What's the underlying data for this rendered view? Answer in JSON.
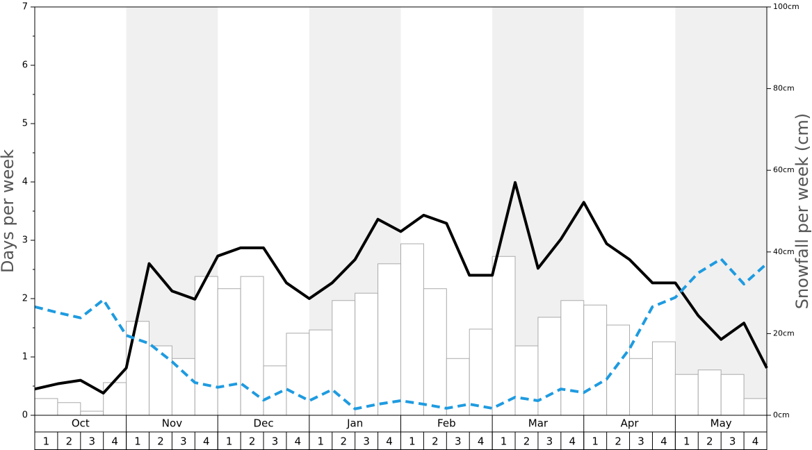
{
  "chart_data": {
    "type": "bar-line",
    "y_label": "Days per week",
    "y2_label": "Snowfall per week (cm)",
    "months": [
      "Oct",
      "Nov",
      "Dec",
      "Jan",
      "Feb",
      "Mar",
      "Apr",
      "May"
    ],
    "weeks": [
      1,
      2,
      3,
      4
    ],
    "ylim": [
      0,
      7
    ],
    "yticks": [
      0,
      1,
      2,
      3,
      4,
      5,
      6,
      7
    ],
    "y2lim": [
      0,
      100
    ],
    "y2ticks": [
      {
        "value": 0,
        "label": "0cm"
      },
      {
        "value": 20,
        "label": "20cm"
      },
      {
        "value": 40,
        "label": "40cm"
      },
      {
        "value": 60,
        "label": "60cm"
      },
      {
        "value": 80,
        "label": "80cm"
      },
      {
        "value": 100,
        "label": "100cm"
      }
    ],
    "series": [
      {
        "type": "bar",
        "axis": "y2",
        "color": "#ffffff",
        "values": [
          4.1,
          3.1,
          1.0,
          8.0,
          23.0,
          17.0,
          13.9,
          34.0,
          31.0,
          34.0,
          12.1,
          20.1,
          20.9,
          28.1,
          29.9,
          37.1,
          42.0,
          31.0,
          13.9,
          21.1,
          38.9,
          17.0,
          24.0,
          28.1,
          27.0,
          22.1,
          13.9,
          18.0,
          10.0,
          11.1,
          10.0,
          4.1
        ]
      },
      {
        "type": "line",
        "color": "#000000",
        "values": [
          0.45,
          0.54,
          0.6,
          0.38,
          0.81,
          2.6,
          2.13,
          1.99,
          2.73,
          2.87,
          2.87,
          2.27,
          2.0,
          2.27,
          2.67,
          3.36,
          3.15,
          3.43,
          3.29,
          2.4,
          2.4,
          3.99,
          2.52,
          3.02,
          3.65,
          2.94,
          2.67,
          2.27,
          2.27,
          1.71,
          1.3,
          1.58,
          0.81
        ]
      },
      {
        "type": "line",
        "color": "#1e9be0",
        "dashed": true,
        "values": [
          1.86,
          1.76,
          1.67,
          1.98,
          1.37,
          1.23,
          0.92,
          0.56,
          0.48,
          0.55,
          0.26,
          0.45,
          0.25,
          0.44,
          0.11,
          0.19,
          0.25,
          0.19,
          0.12,
          0.19,
          0.12,
          0.31,
          0.25,
          0.45,
          0.39,
          0.62,
          1.14,
          1.86,
          2.02,
          2.44,
          2.68,
          2.25,
          2.6
        ]
      }
    ]
  }
}
